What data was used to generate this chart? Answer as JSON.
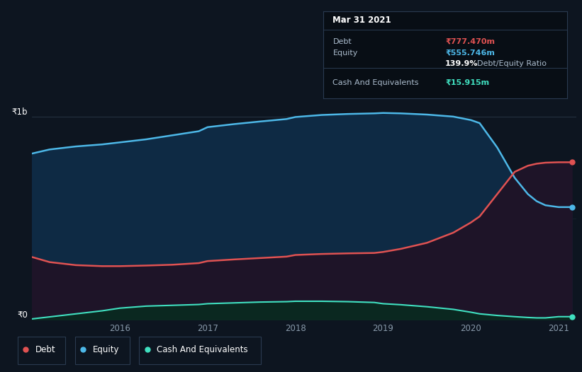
{
  "bg_color": "#0d1520",
  "plot_bg_color": "#0d1520",
  "tooltip": {
    "date": "Mar 31 2021",
    "debt_label": "Debt",
    "debt_value": "₹777.470m",
    "equity_label": "Equity",
    "equity_value": "₹555.746m",
    "ratio": "139.9%",
    "ratio_label": "Debt/Equity Ratio",
    "cash_label": "Cash And Equivalents",
    "cash_value": "₹15.915m"
  },
  "y1b_label": "₹1b",
  "y0_label": "₹0",
  "x_ticks": [
    2016,
    2017,
    2018,
    2019,
    2020,
    2021
  ],
  "debt_color": "#e05252",
  "equity_color": "#4db8e8",
  "cash_color": "#40e0c0",
  "grid_color": "#2a3a4a",
  "years": [
    2015.0,
    2015.2,
    2015.5,
    2015.8,
    2016.0,
    2016.3,
    2016.6,
    2016.9,
    2017.0,
    2017.3,
    2017.6,
    2017.9,
    2018.0,
    2018.3,
    2018.6,
    2018.9,
    2019.0,
    2019.2,
    2019.5,
    2019.8,
    2020.0,
    2020.1,
    2020.3,
    2020.5,
    2020.65,
    2020.75,
    2020.85,
    2021.0,
    2021.15
  ],
  "debt_values": [
    310,
    285,
    270,
    265,
    265,
    268,
    272,
    280,
    290,
    298,
    305,
    312,
    320,
    325,
    328,
    330,
    335,
    350,
    380,
    430,
    480,
    510,
    620,
    730,
    760,
    770,
    775,
    777,
    777
  ],
  "equity_values": [
    820,
    840,
    855,
    865,
    875,
    890,
    910,
    930,
    950,
    965,
    978,
    990,
    1000,
    1010,
    1015,
    1018,
    1020,
    1018,
    1012,
    1002,
    985,
    970,
    850,
    700,
    620,
    585,
    565,
    556,
    556
  ],
  "cash_values": [
    5,
    15,
    30,
    45,
    58,
    68,
    72,
    76,
    80,
    84,
    88,
    90,
    92,
    92,
    90,
    86,
    80,
    75,
    65,
    52,
    38,
    30,
    22,
    16,
    12,
    10,
    10,
    16,
    16
  ],
  "ylim": [
    0,
    1100
  ],
  "xlim": [
    2015.0,
    2021.2
  ]
}
